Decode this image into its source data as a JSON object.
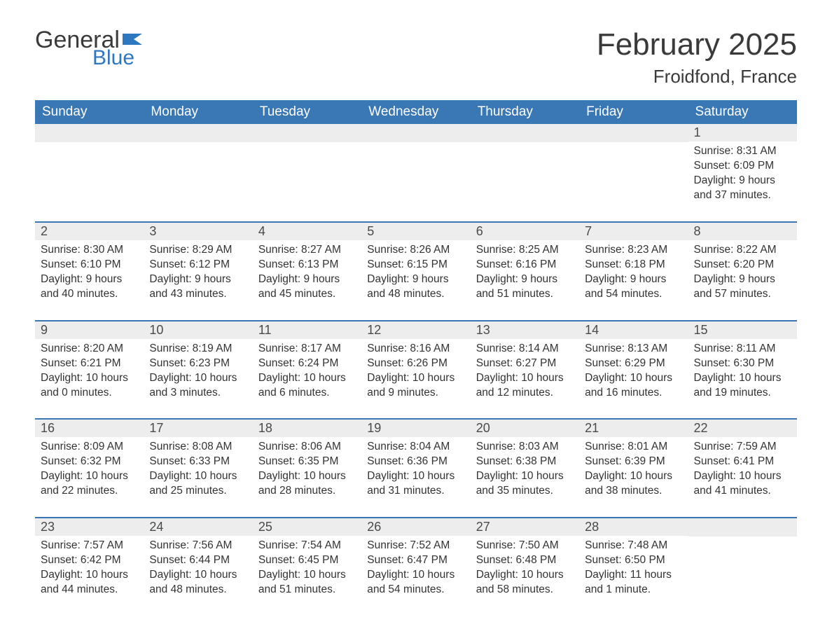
{
  "logo": {
    "general": "General",
    "blue": "Blue"
  },
  "title": "February 2025",
  "location": "Froidfond, France",
  "colors": {
    "header_bg": "#3a78b5",
    "header_text": "#ffffff",
    "day_label_bg": "#ededed",
    "week_divider": "#3a78b5",
    "body_text": "#333333",
    "logo_blue": "#2f78bf",
    "background": "#ffffff"
  },
  "fonts": {
    "title_size_pt": 33,
    "location_size_pt": 20,
    "weekday_size_pt": 14,
    "day_text_size_pt": 12
  },
  "weekdays": [
    "Sunday",
    "Monday",
    "Tuesday",
    "Wednesday",
    "Thursday",
    "Friday",
    "Saturday"
  ],
  "weeks": [
    [
      null,
      null,
      null,
      null,
      null,
      null,
      {
        "n": "1",
        "sunrise": "Sunrise: 8:31 AM",
        "sunset": "Sunset: 6:09 PM",
        "daylight": "Daylight: 9 hours and 37 minutes."
      }
    ],
    [
      {
        "n": "2",
        "sunrise": "Sunrise: 8:30 AM",
        "sunset": "Sunset: 6:10 PM",
        "daylight": "Daylight: 9 hours and 40 minutes."
      },
      {
        "n": "3",
        "sunrise": "Sunrise: 8:29 AM",
        "sunset": "Sunset: 6:12 PM",
        "daylight": "Daylight: 9 hours and 43 minutes."
      },
      {
        "n": "4",
        "sunrise": "Sunrise: 8:27 AM",
        "sunset": "Sunset: 6:13 PM",
        "daylight": "Daylight: 9 hours and 45 minutes."
      },
      {
        "n": "5",
        "sunrise": "Sunrise: 8:26 AM",
        "sunset": "Sunset: 6:15 PM",
        "daylight": "Daylight: 9 hours and 48 minutes."
      },
      {
        "n": "6",
        "sunrise": "Sunrise: 8:25 AM",
        "sunset": "Sunset: 6:16 PM",
        "daylight": "Daylight: 9 hours and 51 minutes."
      },
      {
        "n": "7",
        "sunrise": "Sunrise: 8:23 AM",
        "sunset": "Sunset: 6:18 PM",
        "daylight": "Daylight: 9 hours and 54 minutes."
      },
      {
        "n": "8",
        "sunrise": "Sunrise: 8:22 AM",
        "sunset": "Sunset: 6:20 PM",
        "daylight": "Daylight: 9 hours and 57 minutes."
      }
    ],
    [
      {
        "n": "9",
        "sunrise": "Sunrise: 8:20 AM",
        "sunset": "Sunset: 6:21 PM",
        "daylight": "Daylight: 10 hours and 0 minutes."
      },
      {
        "n": "10",
        "sunrise": "Sunrise: 8:19 AM",
        "sunset": "Sunset: 6:23 PM",
        "daylight": "Daylight: 10 hours and 3 minutes."
      },
      {
        "n": "11",
        "sunrise": "Sunrise: 8:17 AM",
        "sunset": "Sunset: 6:24 PM",
        "daylight": "Daylight: 10 hours and 6 minutes."
      },
      {
        "n": "12",
        "sunrise": "Sunrise: 8:16 AM",
        "sunset": "Sunset: 6:26 PM",
        "daylight": "Daylight: 10 hours and 9 minutes."
      },
      {
        "n": "13",
        "sunrise": "Sunrise: 8:14 AM",
        "sunset": "Sunset: 6:27 PM",
        "daylight": "Daylight: 10 hours and 12 minutes."
      },
      {
        "n": "14",
        "sunrise": "Sunrise: 8:13 AM",
        "sunset": "Sunset: 6:29 PM",
        "daylight": "Daylight: 10 hours and 16 minutes."
      },
      {
        "n": "15",
        "sunrise": "Sunrise: 8:11 AM",
        "sunset": "Sunset: 6:30 PM",
        "daylight": "Daylight: 10 hours and 19 minutes."
      }
    ],
    [
      {
        "n": "16",
        "sunrise": "Sunrise: 8:09 AM",
        "sunset": "Sunset: 6:32 PM",
        "daylight": "Daylight: 10 hours and 22 minutes."
      },
      {
        "n": "17",
        "sunrise": "Sunrise: 8:08 AM",
        "sunset": "Sunset: 6:33 PM",
        "daylight": "Daylight: 10 hours and 25 minutes."
      },
      {
        "n": "18",
        "sunrise": "Sunrise: 8:06 AM",
        "sunset": "Sunset: 6:35 PM",
        "daylight": "Daylight: 10 hours and 28 minutes."
      },
      {
        "n": "19",
        "sunrise": "Sunrise: 8:04 AM",
        "sunset": "Sunset: 6:36 PM",
        "daylight": "Daylight: 10 hours and 31 minutes."
      },
      {
        "n": "20",
        "sunrise": "Sunrise: 8:03 AM",
        "sunset": "Sunset: 6:38 PM",
        "daylight": "Daylight: 10 hours and 35 minutes."
      },
      {
        "n": "21",
        "sunrise": "Sunrise: 8:01 AM",
        "sunset": "Sunset: 6:39 PM",
        "daylight": "Daylight: 10 hours and 38 minutes."
      },
      {
        "n": "22",
        "sunrise": "Sunrise: 7:59 AM",
        "sunset": "Sunset: 6:41 PM",
        "daylight": "Daylight: 10 hours and 41 minutes."
      }
    ],
    [
      {
        "n": "23",
        "sunrise": "Sunrise: 7:57 AM",
        "sunset": "Sunset: 6:42 PM",
        "daylight": "Daylight: 10 hours and 44 minutes."
      },
      {
        "n": "24",
        "sunrise": "Sunrise: 7:56 AM",
        "sunset": "Sunset: 6:44 PM",
        "daylight": "Daylight: 10 hours and 48 minutes."
      },
      {
        "n": "25",
        "sunrise": "Sunrise: 7:54 AM",
        "sunset": "Sunset: 6:45 PM",
        "daylight": "Daylight: 10 hours and 51 minutes."
      },
      {
        "n": "26",
        "sunrise": "Sunrise: 7:52 AM",
        "sunset": "Sunset: 6:47 PM",
        "daylight": "Daylight: 10 hours and 54 minutes."
      },
      {
        "n": "27",
        "sunrise": "Sunrise: 7:50 AM",
        "sunset": "Sunset: 6:48 PM",
        "daylight": "Daylight: 10 hours and 58 minutes."
      },
      {
        "n": "28",
        "sunrise": "Sunrise: 7:48 AM",
        "sunset": "Sunset: 6:50 PM",
        "daylight": "Daylight: 11 hours and 1 minute."
      },
      null
    ]
  ]
}
